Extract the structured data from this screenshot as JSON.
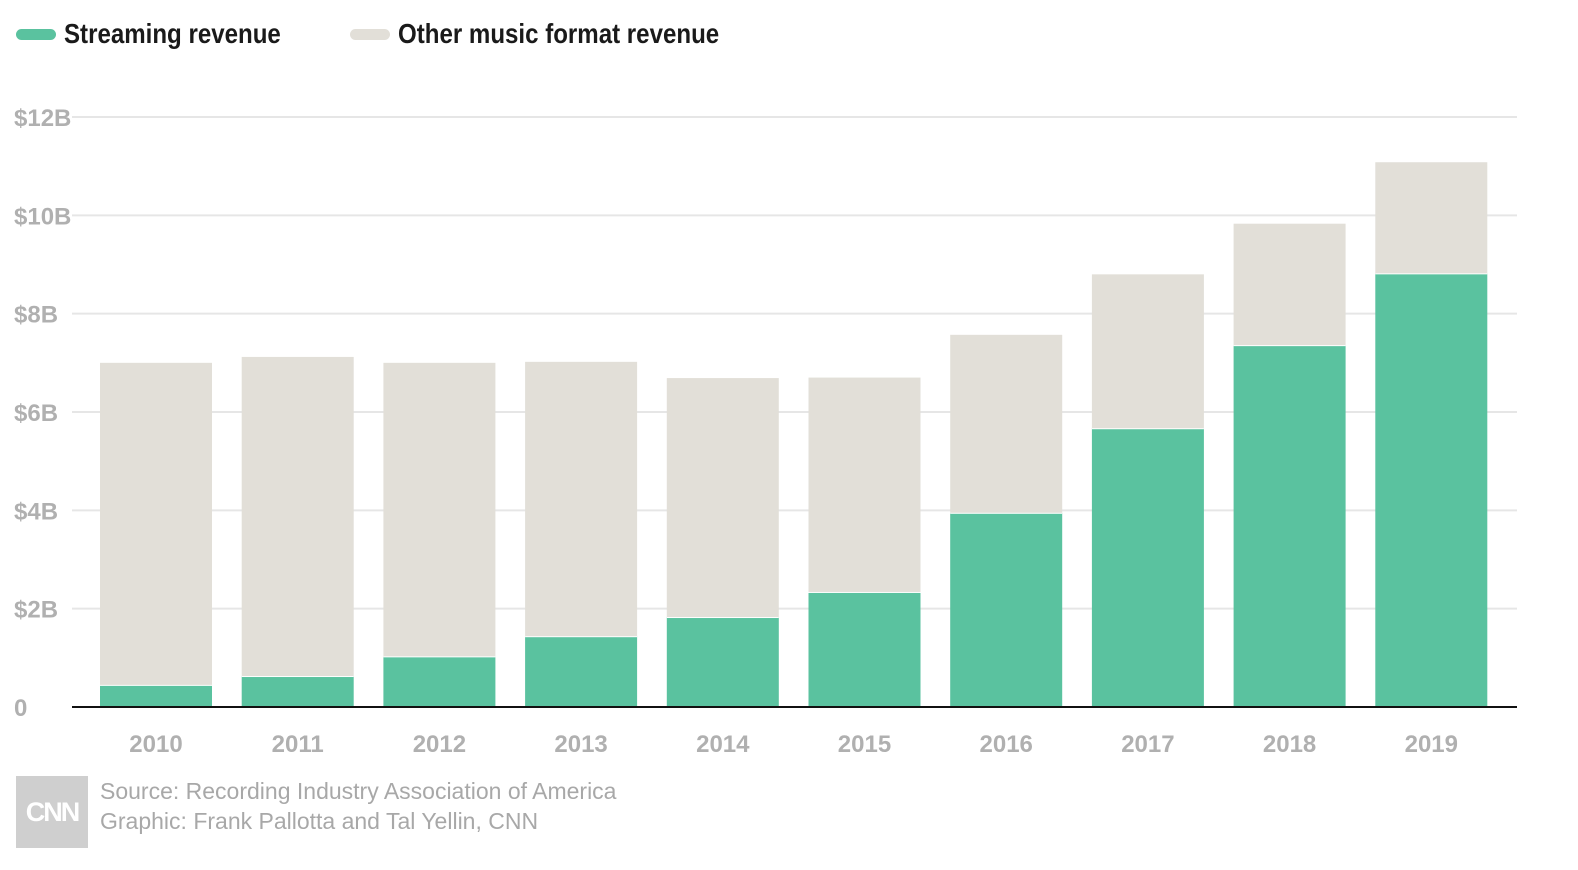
{
  "legend": {
    "streaming_label": "Streaming revenue",
    "other_label": "Other music format revenue"
  },
  "colors": {
    "streaming": "#5ac29f",
    "other": "#e2dfd8",
    "grid": "#e6e6e6",
    "axis": "#111111",
    "tick_text": "#b0b0b0"
  },
  "chart_data": {
    "type": "bar",
    "stacked": true,
    "categories": [
      "2010",
      "2011",
      "2012",
      "2013",
      "2014",
      "2015",
      "2016",
      "2017",
      "2018",
      "2019"
    ],
    "series": [
      {
        "name": "Streaming revenue",
        "values": [
          0.45,
          0.63,
          1.03,
          1.44,
          1.83,
          2.34,
          3.95,
          5.67,
          7.36,
          8.82
        ]
      },
      {
        "name": "Other music format revenue",
        "values": [
          6.55,
          6.49,
          5.97,
          5.58,
          4.86,
          4.36,
          3.62,
          3.13,
          2.47,
          2.26
        ]
      }
    ],
    "yticks": [
      0,
      2,
      4,
      6,
      8,
      10,
      12
    ],
    "ytick_labels": [
      "0",
      "$2B",
      "$4B",
      "$6B",
      "$8B",
      "$10B",
      "$12B"
    ],
    "ylim": [
      0,
      12
    ],
    "xlabel": "",
    "ylabel": "",
    "grid": true,
    "legend_position": "top-left"
  },
  "footer": {
    "logo_text": "CNN",
    "source": "Source: Recording Industry Association of America",
    "graphic": "Graphic: Frank Pallotta and Tal Yellin, CNN"
  }
}
